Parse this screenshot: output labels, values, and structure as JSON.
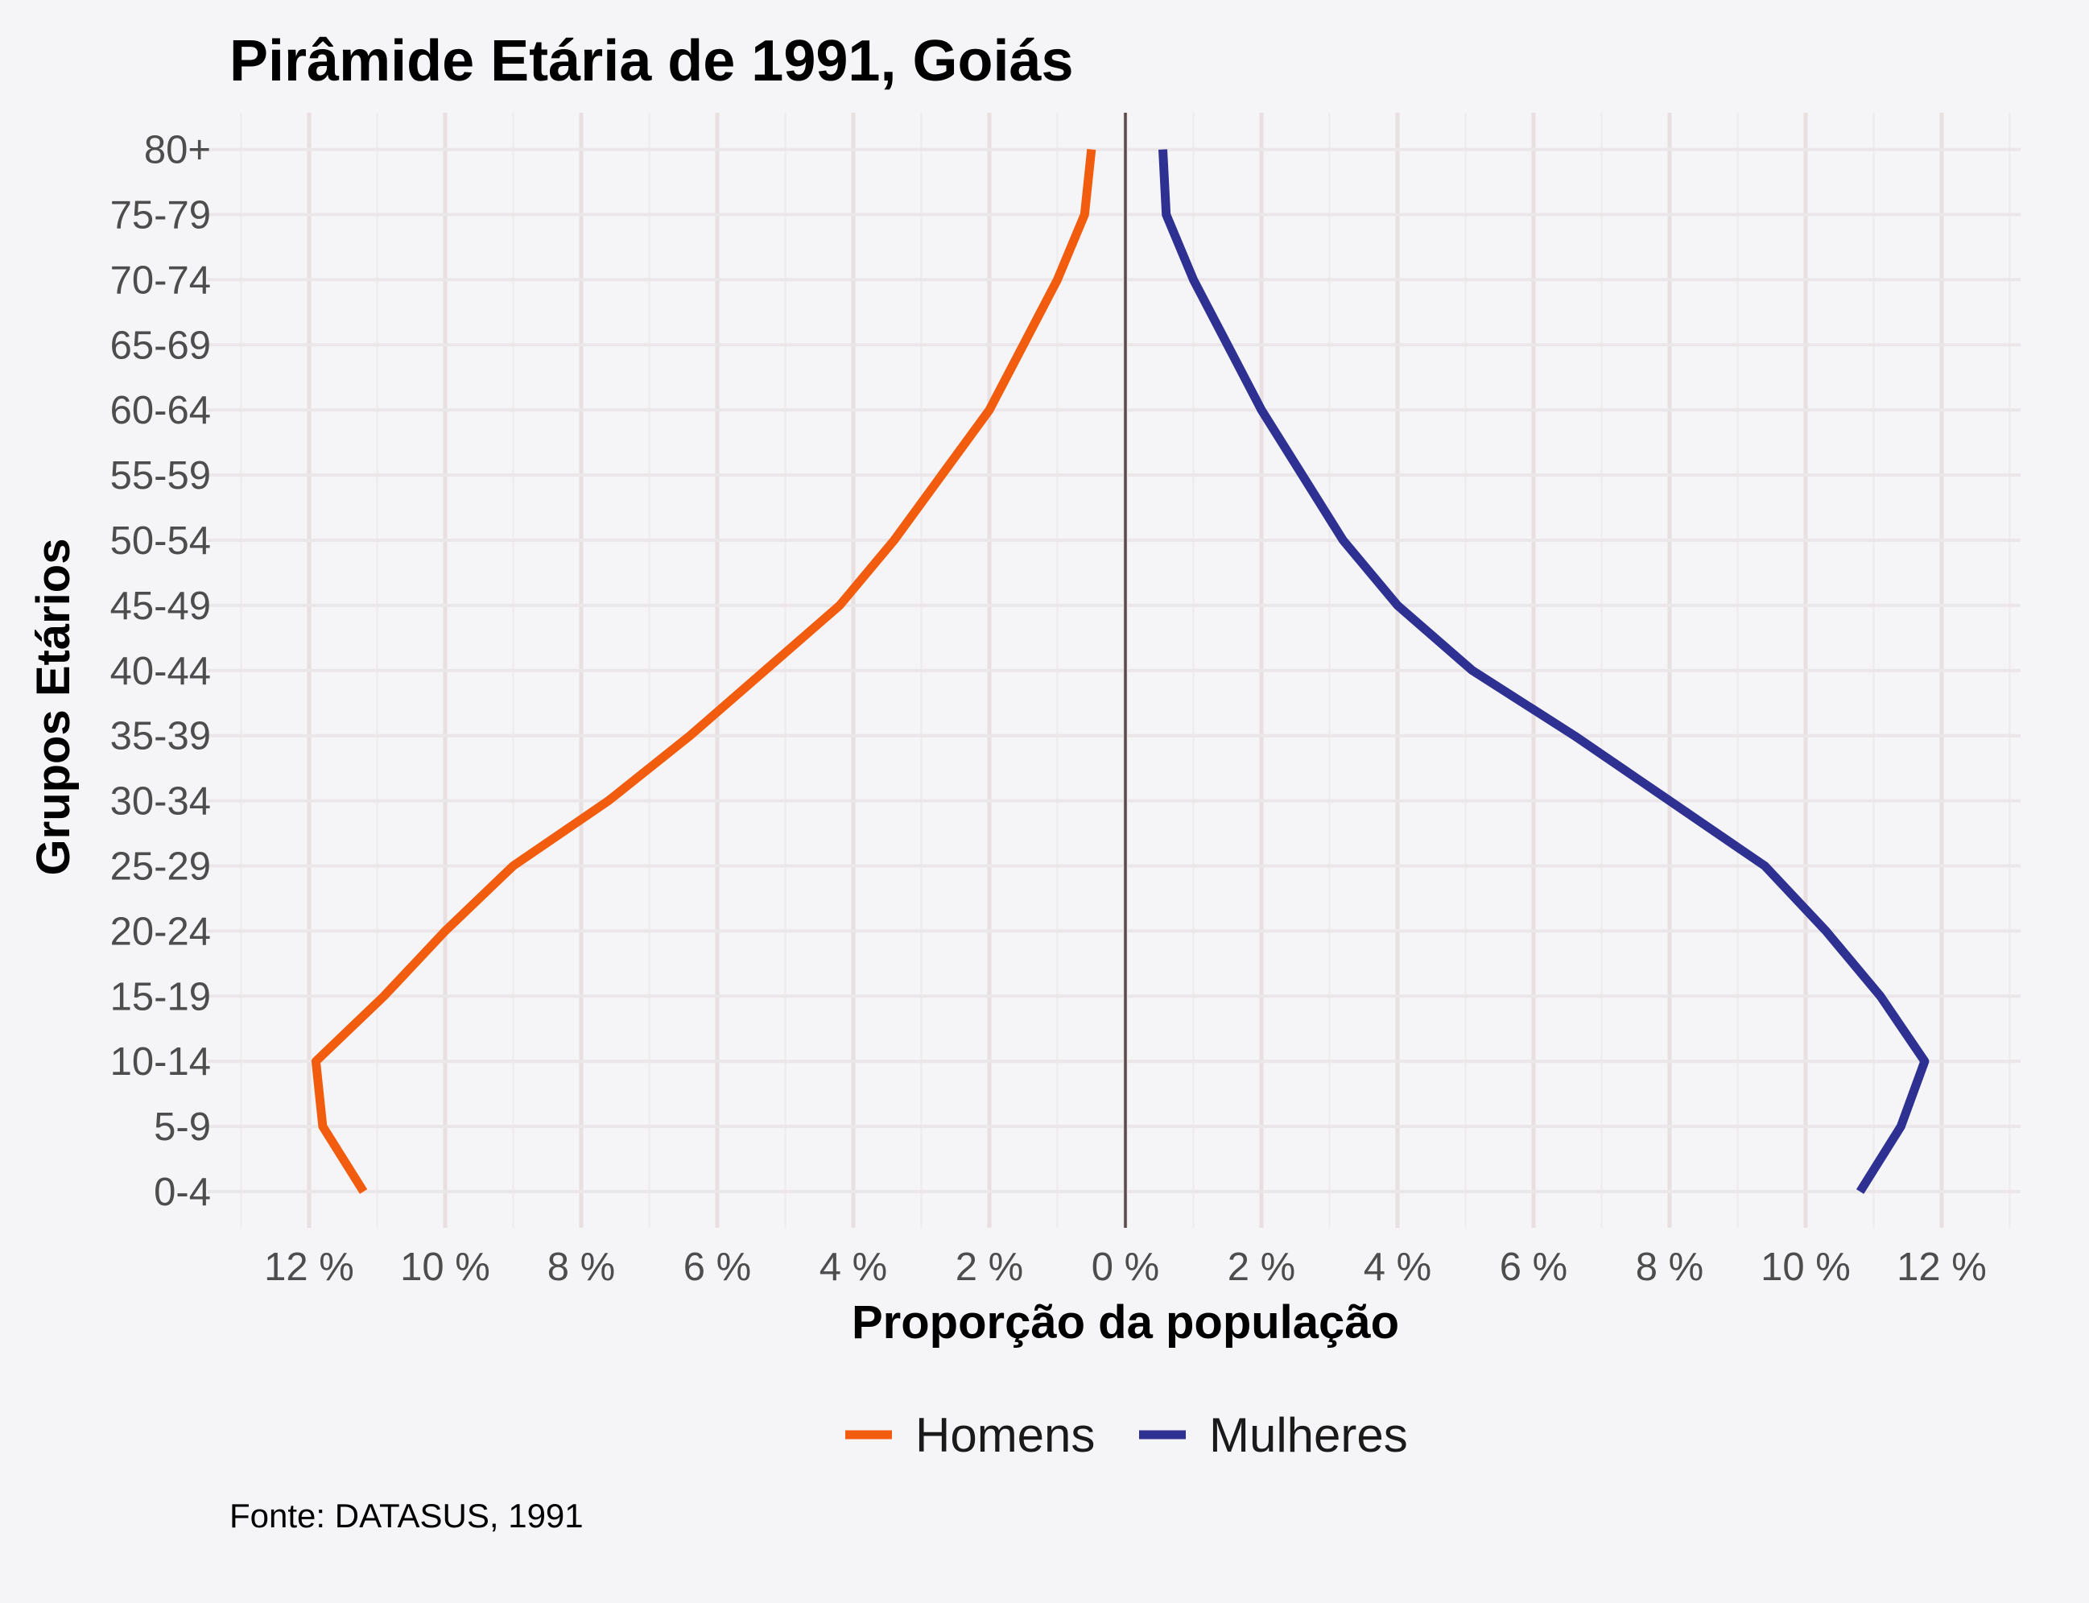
{
  "chart_data": {
    "type": "line",
    "title": "Pirâmide Etária de 1991, Goiás",
    "xlabel": "Proporção da população",
    "ylabel": "Grupos Etários",
    "caption": "Fonte: DATASUS, 1991",
    "categories": [
      "0-4",
      "5-9",
      "10-14",
      "15-19",
      "20-24",
      "25-29",
      "30-34",
      "35-39",
      "40-44",
      "45-49",
      "50-54",
      "55-59",
      "60-64",
      "65-69",
      "70-74",
      "75-79",
      "80+"
    ],
    "x_ticks": [
      "12 %",
      "10 %",
      "8 %",
      "6 %",
      "4 %",
      "2 %",
      "0 %",
      "2 %",
      "4 %",
      "6 %",
      "8 %",
      "10 %",
      "12 %"
    ],
    "xlim": [
      -13,
      13
    ],
    "grid": true,
    "legend_position": "bottom",
    "series": [
      {
        "name": "Homens",
        "color": "#f25c0f",
        "values": [
          -11.2,
          -11.8,
          -11.9,
          -10.9,
          -10.0,
          -9.0,
          -7.6,
          -6.4,
          -5.3,
          -4.2,
          -3.4,
          -2.7,
          -2.0,
          -1.5,
          -1.0,
          -0.6,
          -0.5
        ]
      },
      {
        "name": "Mulheres",
        "color": "#2e3192",
        "values": [
          10.8,
          11.4,
          11.75,
          11.1,
          10.3,
          9.4,
          8.0,
          6.6,
          5.1,
          4.0,
          3.2,
          2.6,
          2.0,
          1.5,
          1.0,
          0.6,
          0.55
        ]
      }
    ],
    "zero_line_color": "#5a4a4a",
    "grid_color": "#e8e0e0"
  }
}
